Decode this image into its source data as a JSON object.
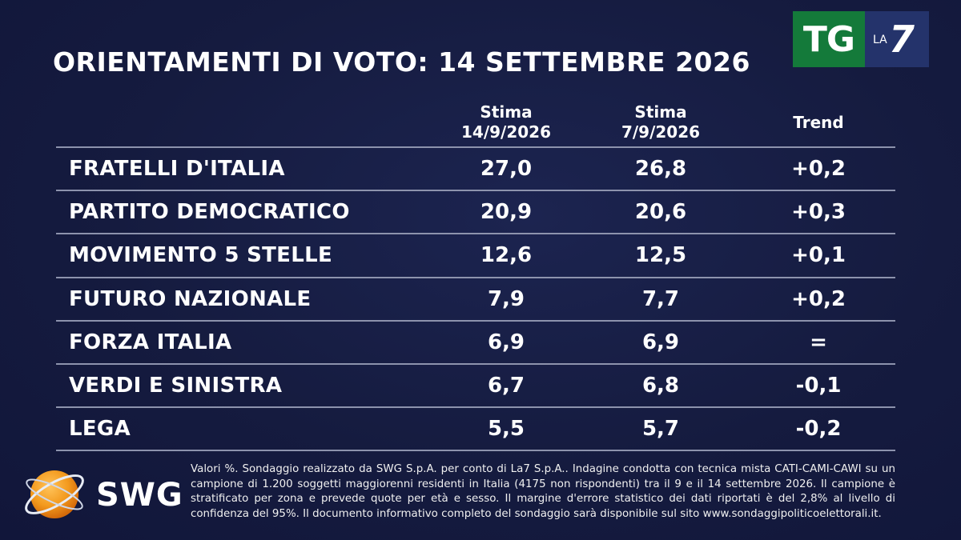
{
  "title": "ORIENTAMENTI DI VOTO: 14 SETTEMBRE 2026",
  "logos": {
    "broadcaster": {
      "tg": "TG",
      "la": "LA",
      "seven": "7"
    },
    "pollster": "SWG"
  },
  "chart_data": {
    "type": "table",
    "columns": [
      {
        "line1": "Stima",
        "line2": "14/9/2026"
      },
      {
        "line1": "Stima",
        "line2": "7/9/2026"
      },
      {
        "line1": "Trend",
        "line2": ""
      }
    ],
    "rows": [
      {
        "party": "FRATELLI D'ITALIA",
        "current": "27,0",
        "previous": "26,8",
        "trend": "+0,2"
      },
      {
        "party": "PARTITO DEMOCRATICO",
        "current": "20,9",
        "previous": "20,6",
        "trend": "+0,3"
      },
      {
        "party": "MOVIMENTO 5 STELLE",
        "current": "12,6",
        "previous": "12,5",
        "trend": "+0,1"
      },
      {
        "party": "FUTURO NAZIONALE",
        "current": "7,9",
        "previous": "7,7",
        "trend": "+0,2"
      },
      {
        "party": "FORZA ITALIA",
        "current": "6,9",
        "previous": "6,9",
        "trend": "="
      },
      {
        "party": "VERDI E SINISTRA",
        "current": "6,7",
        "previous": "6,8",
        "trend": "-0,1"
      },
      {
        "party": "LEGA",
        "current": "5,5",
        "previous": "5,7",
        "trend": "-0,2"
      }
    ]
  },
  "footnote": "Valori %. Sondaggio realizzato da SWG S.p.A. per conto di La7 S.p.A.. Indagine condotta con tecnica mista CATI-CAMI-CAWI su un campione di 1.200 soggetti maggiorenni residenti in Italia (4175 non rispondenti) tra il 9 e il 14 settembre 2026. Il campione è stratificato per zona e prevede quote per età e sesso. Il margine d'errore statistico dei dati riportati è del 2,8% al livello di confidenza del 95%. Il documento informativo completo del sondaggio sarà disponibile sul sito www.sondaggipoliticoelettorali.it.",
  "colors": {
    "background": "#151b3f",
    "rule": "#8d93ad",
    "tg_green": "#147a3a",
    "la7_blue": "#24336b",
    "swg_orange": "#f39a1e"
  }
}
